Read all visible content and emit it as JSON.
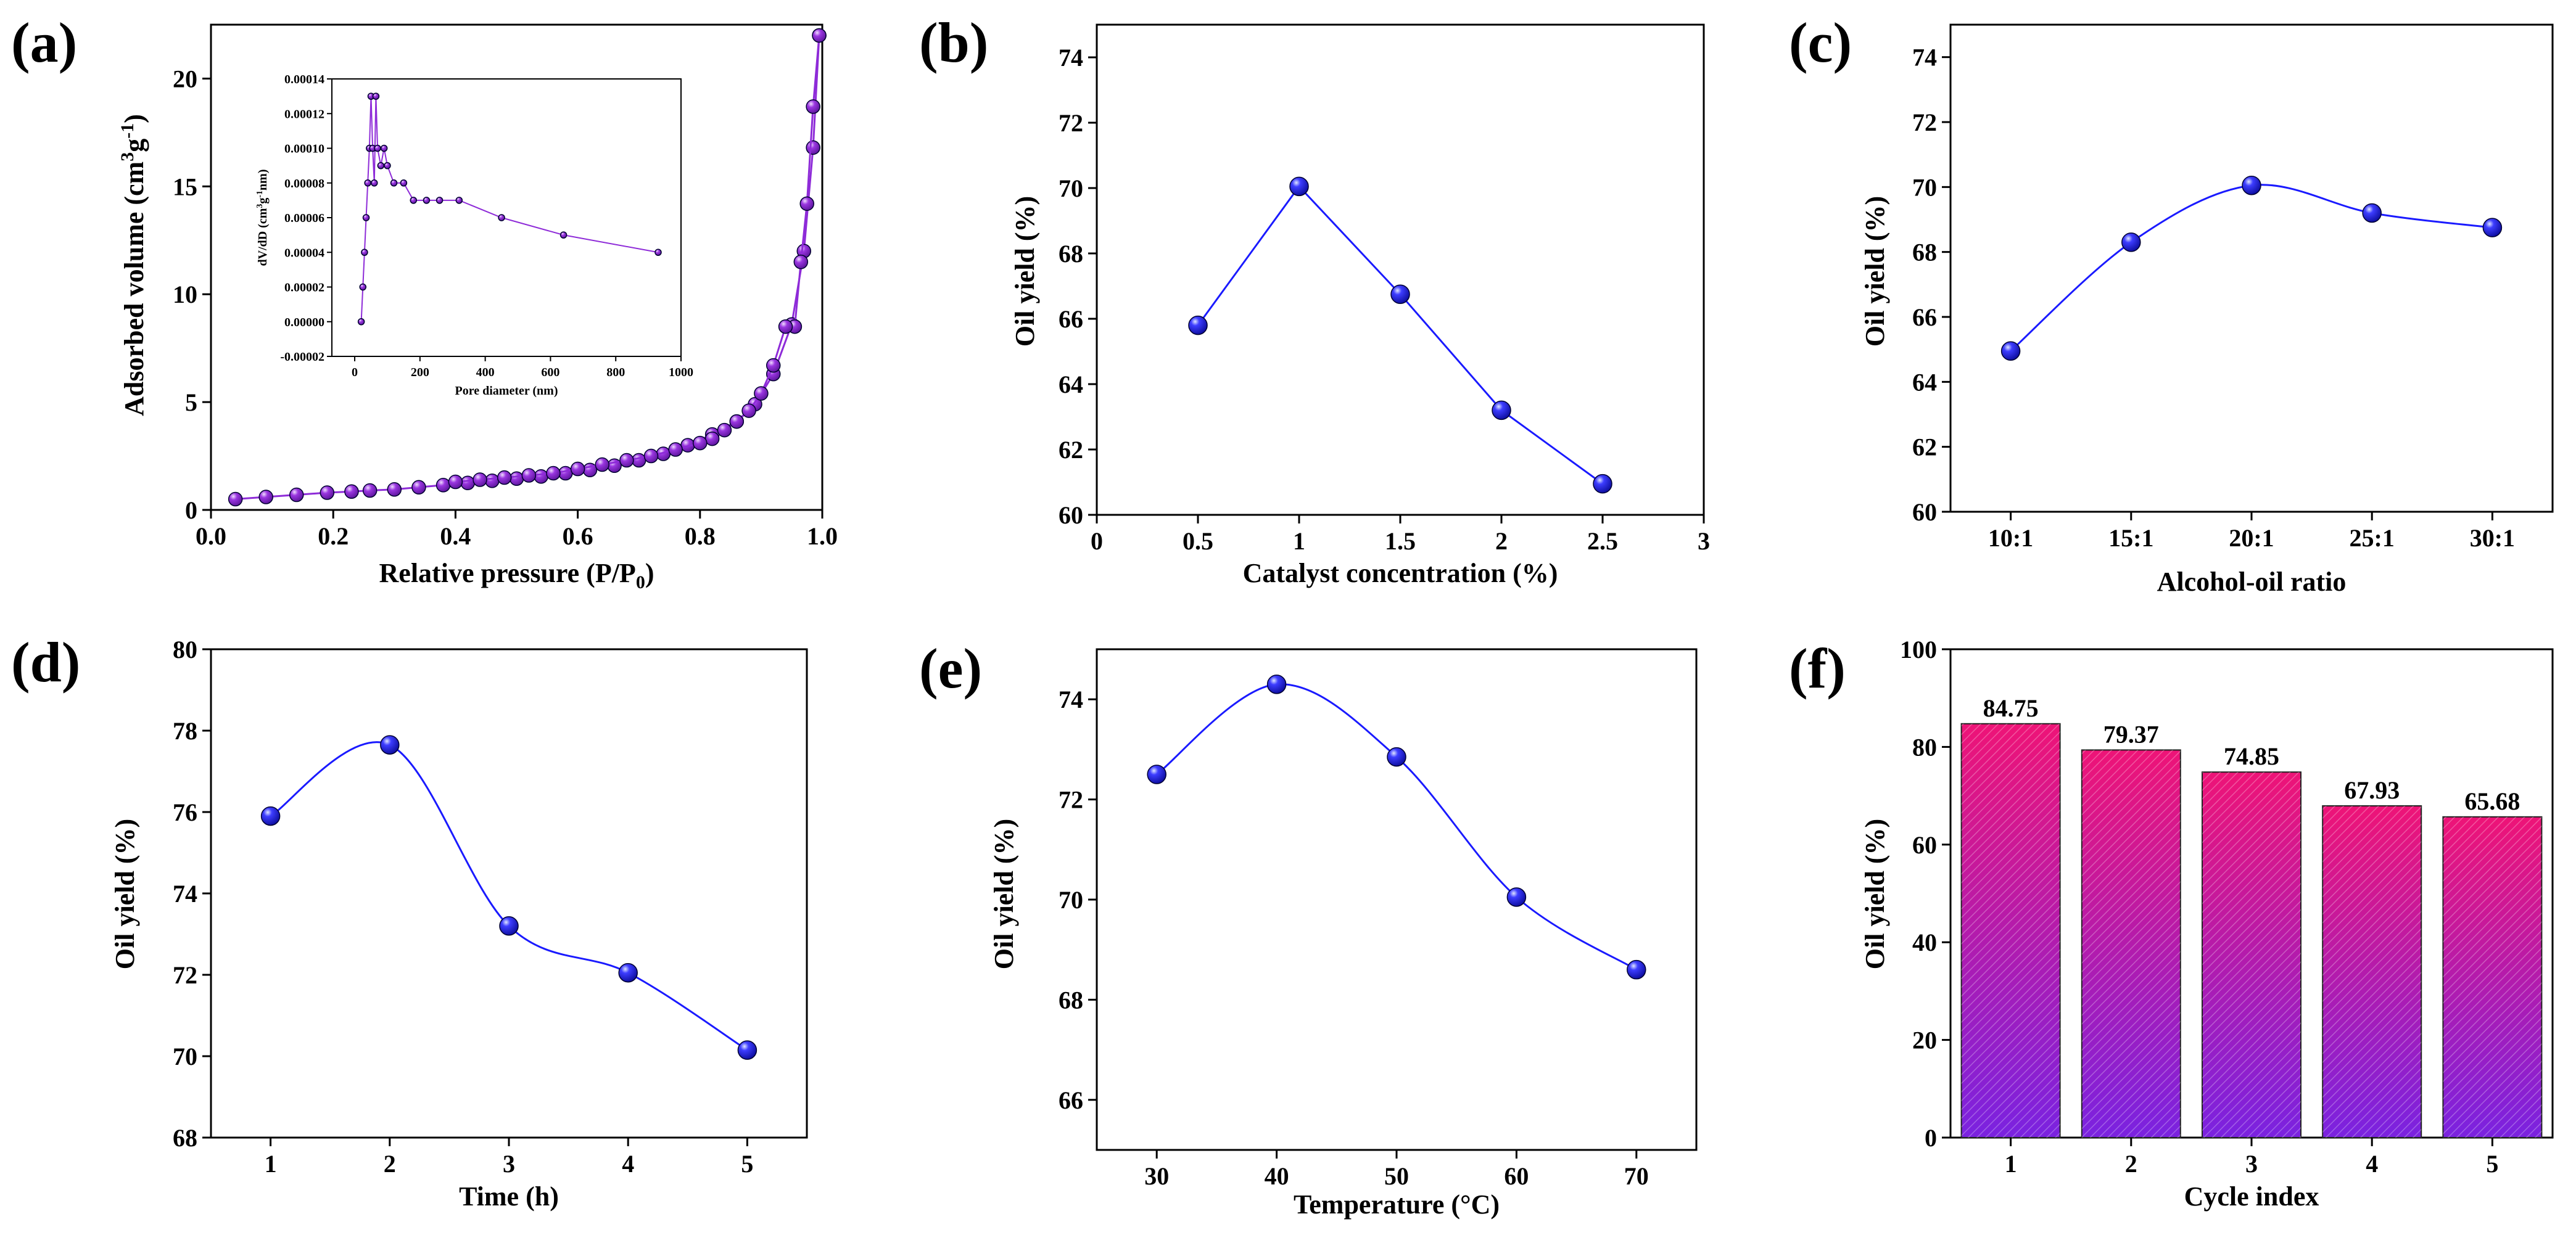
{
  "colors": {
    "marker": "#1a1aff",
    "line": "#1a1aff",
    "isotherm": "#8e2bd8",
    "bar_top": "#ee1477",
    "bar_bottom": "#7a22e0"
  },
  "chart_data": [
    {
      "id": "a",
      "panel_label": "(a)",
      "type": "line",
      "title": "",
      "xlabel": "Relative pressure (P/P",
      "xlabel_sub": "0",
      "xlabel_end": ")",
      "ylabel": "Adsorbed volume (cm",
      "ylabel_sup1": "3",
      "ylabel_mid": "g",
      "ylabel_sup2": "-1",
      "ylabel_end": ")",
      "xlim": [
        0,
        1.0
      ],
      "ylim": [
        0,
        22.5
      ],
      "xticks": [
        "0.0",
        "0.2",
        "0.4",
        "0.6",
        "0.8",
        "1.0"
      ],
      "yticks": [
        "0",
        "5",
        "10",
        "15",
        "20"
      ],
      "series": [
        {
          "name": "adsorption",
          "x": [
            0.04,
            0.09,
            0.14,
            0.19,
            0.23,
            0.26,
            0.3,
            0.34,
            0.38,
            0.42,
            0.46,
            0.5,
            0.54,
            0.58,
            0.62,
            0.66,
            0.7,
            0.74,
            0.78,
            0.82,
            0.86,
            0.89,
            0.92,
            0.95,
            0.97,
            0.985,
            0.995
          ],
          "y": [
            0.5,
            0.6,
            0.7,
            0.8,
            0.85,
            0.9,
            0.95,
            1.05,
            1.15,
            1.25,
            1.35,
            1.45,
            1.55,
            1.7,
            1.85,
            2.05,
            2.3,
            2.6,
            3.0,
            3.5,
            4.1,
            4.9,
            6.3,
            8.6,
            12.0,
            16.8,
            22.0
          ]
        },
        {
          "name": "desorption",
          "x": [
            0.995,
            0.985,
            0.975,
            0.965,
            0.955,
            0.94,
            0.92,
            0.9,
            0.88,
            0.86,
            0.84,
            0.82,
            0.8,
            0.76,
            0.72,
            0.68,
            0.64,
            0.6,
            0.56,
            0.52,
            0.48,
            0.44,
            0.4
          ],
          "y": [
            22.0,
            18.7,
            14.2,
            11.5,
            8.5,
            8.5,
            6.7,
            5.4,
            4.6,
            4.1,
            3.7,
            3.3,
            3.1,
            2.8,
            2.5,
            2.3,
            2.1,
            1.9,
            1.7,
            1.6,
            1.5,
            1.4,
            1.3
          ]
        }
      ],
      "inset": {
        "xlabel": "Pore diameter (nm)",
        "ylabel": "dV/dD (cm",
        "ylabel_sup1": "3",
        "ylabel_mid": "g",
        "ylabel_sup2": "-1",
        "ylabel_end": "nm)",
        "xlim": [
          -70,
          1000
        ],
        "ylim": [
          -2e-05,
          0.00014
        ],
        "xticks": [
          "0",
          "200",
          "400",
          "600",
          "800",
          "1000"
        ],
        "yticks": [
          "-0.00002",
          "0.00000",
          "0.00002",
          "0.00004",
          "0.00006",
          "0.00008",
          "0.00010",
          "0.00012",
          "0.00014"
        ],
        "x": [
          20,
          25,
          30,
          35,
          40,
          45,
          50,
          55,
          60,
          65,
          70,
          80,
          90,
          100,
          120,
          150,
          180,
          220,
          260,
          320,
          450,
          640,
          930
        ],
        "y": [
          0.0,
          2e-05,
          4e-05,
          6e-05,
          8e-05,
          0.0001,
          0.00013,
          0.0001,
          8e-05,
          0.00013,
          0.0001,
          9e-05,
          0.0001,
          9e-05,
          8e-05,
          8e-05,
          7e-05,
          7e-05,
          7e-05,
          7e-05,
          6e-05,
          5e-05,
          4e-05
        ]
      }
    },
    {
      "id": "b",
      "panel_label": "(b)",
      "type": "line",
      "title": "",
      "xlabel": "Catalyst concentration (%)",
      "ylabel": "Oil yield (%)",
      "xlim": [
        0,
        3
      ],
      "ylim": [
        60,
        75
      ],
      "xticks": [
        "0",
        "0.5",
        "1",
        "1.5",
        "2",
        "2.5",
        "3"
      ],
      "yticks": [
        "60",
        "62",
        "64",
        "66",
        "68",
        "70",
        "72",
        "74"
      ],
      "x": [
        0.5,
        1.0,
        1.5,
        2.0,
        2.5
      ],
      "y": [
        65.8,
        70.05,
        66.75,
        63.2,
        60.95
      ]
    },
    {
      "id": "c",
      "panel_label": "(c)",
      "type": "line",
      "title": "",
      "xlabel": "Alcohol-oil ratio",
      "ylabel": "Oil yield (%)",
      "xlim": [
        0.5,
        5.5
      ],
      "ylim": [
        60,
        75
      ],
      "xticks": [
        "10:1",
        "15:1",
        "20:1",
        "25:1",
        "30:1"
      ],
      "yticks": [
        "60",
        "62",
        "64",
        "66",
        "68",
        "70",
        "72",
        "74"
      ],
      "categories": [
        "10:1",
        "15:1",
        "20:1",
        "25:1",
        "30:1"
      ],
      "values": [
        64.95,
        68.3,
        70.05,
        69.2,
        68.75
      ]
    },
    {
      "id": "d",
      "panel_label": "(d)",
      "type": "line",
      "title": "",
      "xlabel": "Time (h)",
      "ylabel": "Oil yield (%)",
      "xlim": [
        0.5,
        5.5
      ],
      "ylim": [
        68,
        80
      ],
      "xticks": [
        "1",
        "2",
        "3",
        "4",
        "5"
      ],
      "yticks": [
        "68",
        "70",
        "72",
        "74",
        "76",
        "78",
        "80"
      ],
      "x": [
        1,
        2,
        3,
        4,
        5
      ],
      "y": [
        75.9,
        77.65,
        73.2,
        72.05,
        70.15
      ]
    },
    {
      "id": "e",
      "panel_label": "(e)",
      "type": "line",
      "title": "",
      "xlabel": "Temperature (°C)",
      "ylabel": "Oil yield (%)",
      "xlim": [
        25,
        75
      ],
      "ylim": [
        65,
        75
      ],
      "xticks": [
        "30",
        "40",
        "50",
        "60",
        "70"
      ],
      "yticks": [
        "66",
        "68",
        "70",
        "72",
        "74"
      ],
      "x": [
        30,
        40,
        50,
        60,
        70
      ],
      "y": [
        72.5,
        74.3,
        72.85,
        70.05,
        68.6
      ]
    },
    {
      "id": "f",
      "panel_label": "(f)",
      "type": "bar",
      "title": "",
      "xlabel": "Cycle index",
      "ylabel": "Oil yield (%)",
      "ylim": [
        0,
        100
      ],
      "yticks": [
        "0",
        "20",
        "40",
        "60",
        "80",
        "100"
      ],
      "categories": [
        "1",
        "2",
        "3",
        "4",
        "5"
      ],
      "values": [
        84.75,
        79.37,
        74.85,
        67.93,
        65.68
      ],
      "data_labels": [
        "84.75",
        "79.37",
        "74.85",
        "67.93",
        "65.68"
      ]
    }
  ]
}
